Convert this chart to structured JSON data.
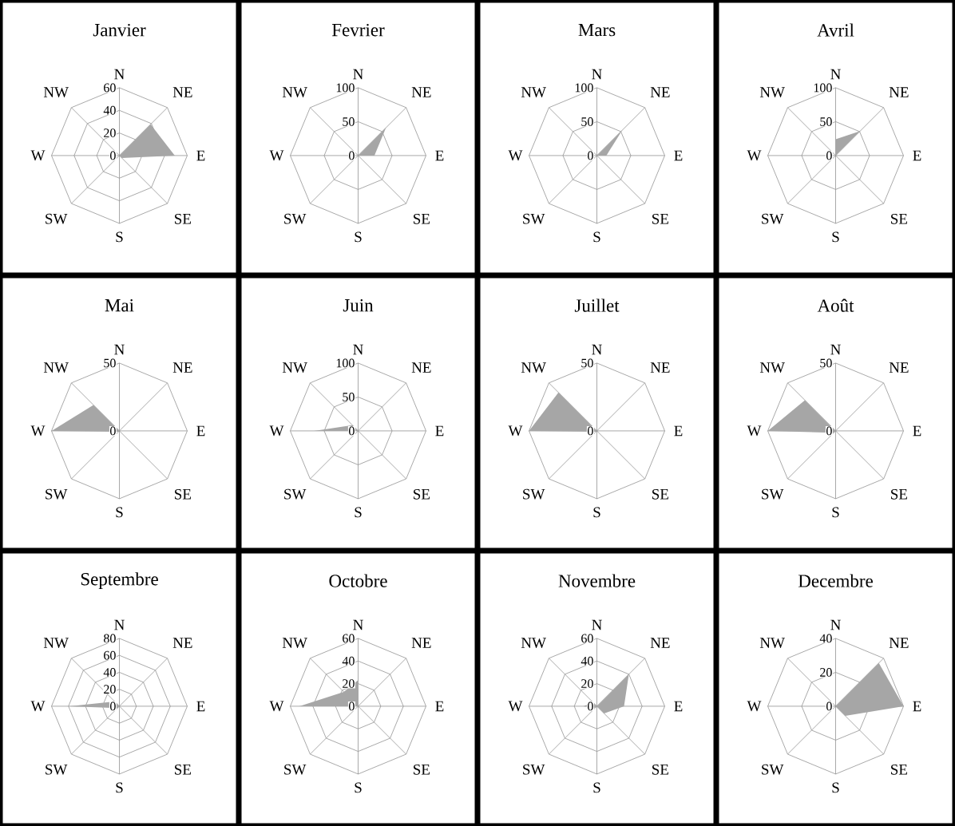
{
  "chart_data": [
    {
      "type": "radar",
      "title": "Janvier",
      "categories": [
        "N",
        "NE",
        "E",
        "SE",
        "S",
        "SW",
        "W",
        "NW"
      ],
      "series": [
        {
          "color": "#a6a6a6",
          "values": [
            0,
            39,
            49,
            3,
            0,
            0,
            0,
            0
          ]
        }
      ],
      "ylim": [
        0,
        60
      ],
      "yticks": [
        0,
        20,
        40,
        60
      ],
      "grid": true
    },
    {
      "type": "radar",
      "title": "Fevrier",
      "categories": [
        "N",
        "NE",
        "E",
        "SE",
        "S",
        "SW",
        "W",
        "NW"
      ],
      "series": [
        {
          "color": "#a6a6a6",
          "values": [
            0,
            58,
            24,
            0,
            0,
            0,
            0,
            0
          ]
        }
      ],
      "ylim": [
        0,
        100
      ],
      "yticks": [
        0,
        50,
        100
      ],
      "grid": true
    },
    {
      "type": "radar",
      "title": "Mars",
      "categories": [
        "N",
        "NE",
        "E",
        "SE",
        "S",
        "SW",
        "W",
        "NW"
      ],
      "series": [
        {
          "color": "#a6a6a6",
          "values": [
            0,
            53,
            14,
            0,
            0,
            0,
            0,
            0
          ]
        }
      ],
      "ylim": [
        0,
        100
      ],
      "yticks": [
        0,
        50,
        100
      ],
      "grid": true
    },
    {
      "type": "radar",
      "title": "Avril",
      "categories": [
        "N",
        "NE",
        "E",
        "SE",
        "S",
        "SW",
        "W",
        "NW"
      ],
      "series": [
        {
          "color": "#a6a6a6",
          "values": [
            24,
            51,
            0,
            0,
            0,
            0,
            0,
            0
          ]
        }
      ],
      "ylim": [
        0,
        100
      ],
      "yticks": [
        0,
        50,
        100
      ],
      "grid": true
    },
    {
      "type": "radar",
      "title": "Mai",
      "categories": [
        "N",
        "NE",
        "E",
        "SE",
        "S",
        "SW",
        "W",
        "NW"
      ],
      "series": [
        {
          "color": "#a6a6a6",
          "values": [
            0,
            0,
            0,
            0,
            0,
            1,
            50,
            27
          ]
        }
      ],
      "ylim": [
        0,
        50
      ],
      "yticks": [
        0,
        50
      ],
      "grid": true
    },
    {
      "type": "radar",
      "title": "Juin",
      "categories": [
        "N",
        "NE",
        "E",
        "SE",
        "S",
        "SW",
        "W",
        "NW"
      ],
      "series": [
        {
          "color": "#a6a6a6",
          "values": [
            0,
            0,
            0,
            0,
            0,
            0,
            65,
            12
          ]
        }
      ],
      "ylim": [
        0,
        100
      ],
      "yticks": [
        0,
        50,
        100
      ],
      "grid": true
    },
    {
      "type": "radar",
      "title": "Juillet",
      "categories": [
        "N",
        "NE",
        "E",
        "SE",
        "S",
        "SW",
        "W",
        "NW"
      ],
      "series": [
        {
          "color": "#a6a6a6",
          "values": [
            0,
            0,
            0,
            0,
            0,
            1,
            50,
            40
          ]
        }
      ],
      "ylim": [
        0,
        50
      ],
      "yticks": [
        0,
        50
      ],
      "grid": true
    },
    {
      "type": "radar",
      "title": "Août",
      "categories": [
        "N",
        "NE",
        "E",
        "SE",
        "S",
        "SW",
        "W",
        "NW"
      ],
      "series": [
        {
          "color": "#a6a6a6",
          "values": [
            0,
            0,
            0,
            0,
            0,
            2,
            50,
            32
          ]
        }
      ],
      "ylim": [
        0,
        50
      ],
      "yticks": [
        0,
        50
      ],
      "grid": true
    },
    {
      "type": "radar",
      "title": "Septembre",
      "categories": [
        "N",
        "NE",
        "E",
        "SE",
        "S",
        "SW",
        "W",
        "NW"
      ],
      "series": [
        {
          "color": "#a6a6a6",
          "values": [
            0,
            0,
            0,
            0,
            0,
            3,
            59,
            8
          ]
        }
      ],
      "ylim": [
        0,
        80
      ],
      "yticks": [
        0,
        20,
        40,
        60,
        80
      ],
      "grid": true
    },
    {
      "type": "radar",
      "title": "Octobre",
      "categories": [
        "N",
        "NE",
        "E",
        "SE",
        "S",
        "SW",
        "W",
        "NW"
      ],
      "series": [
        {
          "color": "#a6a6a6",
          "values": [
            23,
            0,
            0,
            0,
            0,
            0,
            52,
            18
          ]
        }
      ],
      "ylim": [
        0,
        60
      ],
      "yticks": [
        0,
        20,
        40,
        60
      ],
      "grid": true
    },
    {
      "type": "radar",
      "title": "Novembre",
      "categories": [
        "N",
        "NE",
        "E",
        "SE",
        "S",
        "SW",
        "W",
        "NW"
      ],
      "series": [
        {
          "color": "#a6a6a6",
          "values": [
            0,
            40,
            24,
            9,
            0,
            2,
            12,
            5
          ]
        }
      ],
      "ylim": [
        0,
        60
      ],
      "yticks": [
        0,
        20,
        40,
        60
      ],
      "grid": true
    },
    {
      "type": "radar",
      "title": "Decembre",
      "categories": [
        "N",
        "NE",
        "E",
        "SE",
        "S",
        "SW",
        "W",
        "NW"
      ],
      "series": [
        {
          "color": "#a6a6a6",
          "values": [
            0,
            36,
            40,
            8,
            0,
            0,
            0,
            0
          ]
        }
      ],
      "ylim": [
        0,
        40
      ],
      "yticks": [
        0,
        20,
        40
      ],
      "grid": true
    }
  ]
}
